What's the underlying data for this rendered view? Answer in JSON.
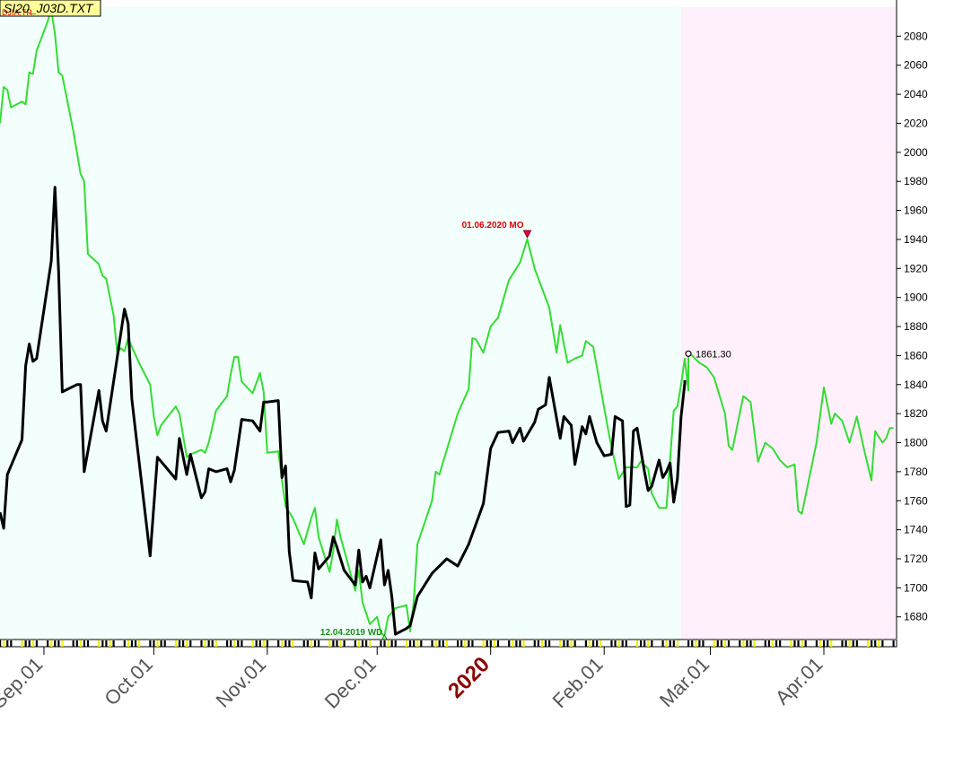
{
  "chart_data": {
    "type": "line",
    "title": "SI20_J03D.TXT",
    "overlap_label": "DJIA.TR",
    "x_range": [
      "2019-08-20",
      "2020-04-20"
    ],
    "y_range": [
      1665,
      2100
    ],
    "y_ticks": [
      1680,
      1700,
      1720,
      1740,
      1760,
      1780,
      1800,
      1820,
      1840,
      1860,
      1880,
      1900,
      1920,
      1940,
      1960,
      1980,
      2000,
      2020,
      2040,
      2060,
      2080
    ],
    "x_ticks": [
      {
        "label": "Sep.01",
        "date": "2019-09-01"
      },
      {
        "label": "Oct.01",
        "date": "2019-10-01"
      },
      {
        "label": "Nov.01",
        "date": "2019-11-01"
      },
      {
        "label": "Dec.01",
        "date": "2019-12-01"
      },
      {
        "label": "2020",
        "date": "2020-01-01",
        "year": true
      },
      {
        "label": "Feb.01",
        "date": "2020-02-01"
      },
      {
        "label": "Mar.01",
        "date": "2020-03-01"
      },
      {
        "label": "Apr.01",
        "date": "2020-04-01"
      }
    ],
    "projection_start": "2020-02-22",
    "colors": {
      "history_bg": "#f2fffc",
      "projection_bg": "#fff0fb",
      "price_line": "#000000",
      "forecast_line": "#33dd33",
      "annotation_red": "#e00000",
      "annotation_green": "#1a8f1a",
      "axis_tick_yellow": "#f0f000"
    },
    "series": [
      {
        "role": "price",
        "color": "#000000",
        "points": [
          [
            "2019-08-20",
            1752
          ],
          [
            "2019-08-21",
            1741
          ],
          [
            "2019-08-22",
            1778
          ],
          [
            "2019-08-26",
            1802
          ],
          [
            "2019-08-27",
            1853
          ],
          [
            "2019-08-28",
            1868
          ],
          [
            "2019-08-29",
            1856
          ],
          [
            "2019-08-30",
            1858
          ],
          [
            "2019-09-03",
            1925
          ],
          [
            "2019-09-04",
            1976
          ],
          [
            "2019-09-05",
            1918
          ],
          [
            "2019-09-06",
            1835
          ],
          [
            "2019-09-10",
            1840
          ],
          [
            "2019-09-11",
            1840
          ],
          [
            "2019-09-12",
            1780
          ],
          [
            "2019-09-16",
            1836
          ],
          [
            "2019-09-17",
            1815
          ],
          [
            "2019-09-18",
            1808
          ],
          [
            "2019-09-23",
            1892
          ],
          [
            "2019-09-24",
            1882
          ],
          [
            "2019-09-25",
            1830
          ],
          [
            "2019-09-26",
            1808
          ],
          [
            "2019-09-30",
            1722
          ],
          [
            "2019-10-02",
            1790
          ],
          [
            "2019-10-04",
            1784
          ],
          [
            "2019-10-07",
            1775
          ],
          [
            "2019-10-08",
            1803
          ],
          [
            "2019-10-10",
            1778
          ],
          [
            "2019-10-11",
            1792
          ],
          [
            "2019-10-14",
            1762
          ],
          [
            "2019-10-15",
            1766
          ],
          [
            "2019-10-16",
            1782
          ],
          [
            "2019-10-18",
            1780
          ],
          [
            "2019-10-21",
            1782
          ],
          [
            "2019-10-22",
            1773
          ],
          [
            "2019-10-23",
            1781
          ],
          [
            "2019-10-25",
            1816
          ],
          [
            "2019-10-28",
            1815
          ],
          [
            "2019-10-30",
            1808
          ],
          [
            "2019-10-31",
            1828
          ],
          [
            "2019-11-01",
            1828
          ],
          [
            "2019-11-04",
            1829
          ],
          [
            "2019-11-05",
            1776
          ],
          [
            "2019-11-06",
            1784
          ],
          [
            "2019-11-07",
            1725
          ],
          [
            "2019-11-08",
            1705
          ],
          [
            "2019-11-12",
            1704
          ],
          [
            "2019-11-13",
            1693
          ],
          [
            "2019-11-14",
            1724
          ],
          [
            "2019-11-15",
            1713
          ],
          [
            "2019-11-18",
            1722
          ],
          [
            "2019-11-19",
            1735
          ],
          [
            "2019-11-20",
            1728
          ],
          [
            "2019-11-22",
            1712
          ],
          [
            "2019-11-25",
            1702
          ],
          [
            "2019-11-26",
            1726
          ],
          [
            "2019-11-27",
            1704
          ],
          [
            "2019-11-28",
            1708
          ],
          [
            "2019-11-29",
            1700
          ],
          [
            "2019-12-02",
            1733
          ],
          [
            "2019-12-03",
            1702
          ],
          [
            "2019-12-04",
            1712
          ],
          [
            "2019-12-05",
            1694
          ],
          [
            "2019-12-06",
            1668
          ],
          [
            "2019-12-09",
            1672
          ],
          [
            "2019-12-10",
            1674
          ],
          [
            "2019-12-12",
            1694
          ],
          [
            "2019-12-16",
            1710
          ],
          [
            "2019-12-20",
            1720
          ],
          [
            "2019-12-23",
            1715
          ],
          [
            "2019-12-26",
            1730
          ],
          [
            "2019-12-30",
            1758
          ],
          [
            "2020-01-01",
            1796
          ],
          [
            "2020-01-03",
            1807
          ],
          [
            "2020-01-06",
            1808
          ],
          [
            "2020-01-07",
            1800
          ],
          [
            "2020-01-09",
            1810
          ],
          [
            "2020-01-10",
            1801
          ],
          [
            "2020-01-13",
            1814
          ],
          [
            "2020-01-14",
            1823
          ],
          [
            "2020-01-16",
            1826
          ],
          [
            "2020-01-17",
            1845
          ],
          [
            "2020-01-20",
            1803
          ],
          [
            "2020-01-21",
            1818
          ],
          [
            "2020-01-23",
            1812
          ],
          [
            "2020-01-24",
            1785
          ],
          [
            "2020-01-26",
            1811
          ],
          [
            "2020-01-27",
            1806
          ],
          [
            "2020-01-28",
            1818
          ],
          [
            "2020-01-30",
            1800
          ],
          [
            "2020-02-01",
            1791
          ],
          [
            "2020-02-03",
            1792
          ],
          [
            "2020-02-04",
            1818
          ],
          [
            "2020-02-06",
            1815
          ],
          [
            "2020-02-07",
            1756
          ],
          [
            "2020-02-08",
            1757
          ],
          [
            "2020-02-09",
            1808
          ],
          [
            "2020-02-10",
            1810
          ],
          [
            "2020-02-12",
            1780
          ],
          [
            "2020-02-13",
            1767
          ],
          [
            "2020-02-14",
            1770
          ],
          [
            "2020-02-16",
            1788
          ],
          [
            "2020-02-17",
            1776
          ],
          [
            "2020-02-18",
            1780
          ],
          [
            "2020-02-19",
            1786
          ],
          [
            "2020-02-20",
            1759
          ],
          [
            "2020-02-21",
            1775
          ],
          [
            "2020-02-22",
            1818
          ],
          [
            "2020-02-23",
            1841
          ],
          [
            "2020-02-23",
            1843
          ]
        ]
      },
      {
        "role": "projection",
        "color": "#33dd33",
        "points": [
          [
            "2019-08-20",
            2020
          ],
          [
            "2019-08-21",
            2045
          ],
          [
            "2019-08-22",
            2043
          ],
          [
            "2019-08-23",
            2031
          ],
          [
            "2019-08-26",
            2035
          ],
          [
            "2019-08-27",
            2033
          ],
          [
            "2019-08-28",
            2055
          ],
          [
            "2019-08-29",
            2054
          ],
          [
            "2019-08-30",
            2070
          ],
          [
            "2019-09-02",
            2090
          ],
          [
            "2019-09-03",
            2098
          ],
          [
            "2019-09-04",
            2082
          ],
          [
            "2019-09-05",
            2055
          ],
          [
            "2019-09-06",
            2053
          ],
          [
            "2019-09-09",
            2015
          ],
          [
            "2019-09-11",
            1985
          ],
          [
            "2019-09-12",
            1980
          ],
          [
            "2019-09-13",
            1930
          ],
          [
            "2019-09-16",
            1923
          ],
          [
            "2019-09-17",
            1915
          ],
          [
            "2019-09-18",
            1913
          ],
          [
            "2019-09-20",
            1888
          ],
          [
            "2019-09-21",
            1862
          ],
          [
            "2019-09-22",
            1865
          ],
          [
            "2019-09-23",
            1863
          ],
          [
            "2019-09-24",
            1872
          ],
          [
            "2019-09-25",
            1866
          ],
          [
            "2019-09-27",
            1855
          ],
          [
            "2019-09-30",
            1840
          ],
          [
            "2019-10-01",
            1818
          ],
          [
            "2019-10-02",
            1805
          ],
          [
            "2019-10-03",
            1812
          ],
          [
            "2019-10-07",
            1825
          ],
          [
            "2019-10-08",
            1820
          ],
          [
            "2019-10-10",
            1790
          ],
          [
            "2019-10-11",
            1792
          ],
          [
            "2019-10-14",
            1795
          ],
          [
            "2019-10-15",
            1793
          ],
          [
            "2019-10-16",
            1800
          ],
          [
            "2019-10-18",
            1822
          ],
          [
            "2019-10-21",
            1832
          ],
          [
            "2019-10-22",
            1847
          ],
          [
            "2019-10-23",
            1859
          ],
          [
            "2019-10-24",
            1859
          ],
          [
            "2019-10-25",
            1842
          ],
          [
            "2019-10-28",
            1834
          ],
          [
            "2019-10-30",
            1848
          ],
          [
            "2019-10-31",
            1835
          ],
          [
            "2019-11-01",
            1793
          ],
          [
            "2019-11-04",
            1794
          ],
          [
            "2019-11-05",
            1774
          ],
          [
            "2019-11-06",
            1756
          ],
          [
            "2019-11-08",
            1748
          ],
          [
            "2019-11-11",
            1730
          ],
          [
            "2019-11-13",
            1748
          ],
          [
            "2019-11-14",
            1755
          ],
          [
            "2019-11-15",
            1735
          ],
          [
            "2019-11-18",
            1711
          ],
          [
            "2019-11-19",
            1725
          ],
          [
            "2019-11-20",
            1747
          ],
          [
            "2019-11-21",
            1735
          ],
          [
            "2019-11-22",
            1726
          ],
          [
            "2019-11-25",
            1698
          ],
          [
            "2019-11-26",
            1712
          ],
          [
            "2019-11-27",
            1690
          ],
          [
            "2019-11-29",
            1675
          ],
          [
            "2019-12-01",
            1680
          ],
          [
            "2019-12-02",
            1669
          ],
          [
            "2019-12-03",
            1667
          ],
          [
            "2019-12-04",
            1680
          ],
          [
            "2019-12-06",
            1686
          ],
          [
            "2019-12-09",
            1688
          ],
          [
            "2019-12-10",
            1670
          ],
          [
            "2019-12-11",
            1690
          ],
          [
            "2019-12-12",
            1730
          ],
          [
            "2019-12-16",
            1760
          ],
          [
            "2019-12-17",
            1780
          ],
          [
            "2019-12-18",
            1778
          ],
          [
            "2019-12-20",
            1795
          ],
          [
            "2019-12-23",
            1820
          ],
          [
            "2019-12-26",
            1837
          ],
          [
            "2019-12-27",
            1872
          ],
          [
            "2019-12-28",
            1871
          ],
          [
            "2019-12-30",
            1862
          ],
          [
            "2020-01-01",
            1880
          ],
          [
            "2020-01-03",
            1886
          ],
          [
            "2020-01-06",
            1912
          ],
          [
            "2020-01-09",
            1924
          ],
          [
            "2020-01-11",
            1940
          ],
          [
            "2020-01-13",
            1920
          ],
          [
            "2020-01-17",
            1893
          ],
          [
            "2020-01-19",
            1862
          ],
          [
            "2020-01-20",
            1881
          ],
          [
            "2020-01-22",
            1855
          ],
          [
            "2020-01-24",
            1858
          ],
          [
            "2020-01-26",
            1860
          ],
          [
            "2020-01-27",
            1870
          ],
          [
            "2020-01-29",
            1866
          ],
          [
            "2020-02-02",
            1810
          ],
          [
            "2020-02-03",
            1797
          ],
          [
            "2020-02-05",
            1775
          ],
          [
            "2020-02-07",
            1783
          ],
          [
            "2020-02-10",
            1783
          ],
          [
            "2020-02-11",
            1787
          ],
          [
            "2020-02-13",
            1782
          ],
          [
            "2020-02-14",
            1765
          ],
          [
            "2020-02-16",
            1755
          ],
          [
            "2020-02-18",
            1755
          ],
          [
            "2020-02-19",
            1788
          ],
          [
            "2020-02-20",
            1822
          ],
          [
            "2020-02-21",
            1825
          ],
          [
            "2020-02-22",
            1840
          ],
          [
            "2020-02-23",
            1858
          ],
          [
            "2020-02-24",
            1836
          ],
          [
            "2020-02-24",
            1862
          ],
          [
            "2020-02-25",
            1860
          ],
          [
            "2020-02-27",
            1855
          ],
          [
            "2020-02-29",
            1852
          ],
          [
            "2020-03-02",
            1845
          ],
          [
            "2020-03-05",
            1820
          ],
          [
            "2020-03-06",
            1798
          ],
          [
            "2020-03-07",
            1795
          ],
          [
            "2020-03-10",
            1832
          ],
          [
            "2020-03-12",
            1828
          ],
          [
            "2020-03-14",
            1787
          ],
          [
            "2020-03-16",
            1800
          ],
          [
            "2020-03-18",
            1796
          ],
          [
            "2020-03-20",
            1788
          ],
          [
            "2020-03-22",
            1783
          ],
          [
            "2020-03-24",
            1785
          ],
          [
            "2020-03-25",
            1753
          ],
          [
            "2020-03-26",
            1751
          ],
          [
            "2020-03-30",
            1800
          ],
          [
            "2020-04-01",
            1838
          ],
          [
            "2020-04-03",
            1813
          ],
          [
            "2020-04-04",
            1820
          ],
          [
            "2020-04-06",
            1815
          ],
          [
            "2020-04-08",
            1800
          ],
          [
            "2020-04-10",
            1818
          ],
          [
            "2020-04-12",
            1795
          ],
          [
            "2020-04-14",
            1774
          ],
          [
            "2020-04-15",
            1808
          ],
          [
            "2020-04-17",
            1800
          ],
          [
            "2020-04-18",
            1803
          ],
          [
            "2020-04-19",
            1810
          ],
          [
            "2020-04-20",
            1810
          ]
        ]
      }
    ],
    "annotations": [
      {
        "text": "01.06.2020 MO",
        "date": "2020-01-11",
        "value": 1940,
        "color": "red",
        "marker": "down-arrow"
      },
      {
        "text": "12.04.2019 WD",
        "date": "2019-12-03",
        "value": 1667,
        "color": "green",
        "marker": "up-arrow"
      },
      {
        "text": "1861.30",
        "date": "2020-02-24",
        "value": 1861.3,
        "color": "black",
        "marker": "circle"
      }
    ]
  }
}
